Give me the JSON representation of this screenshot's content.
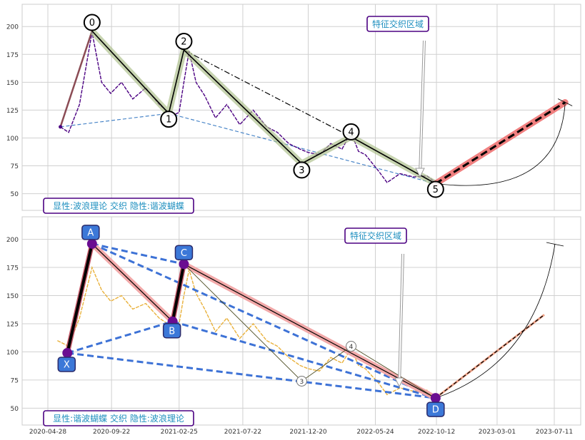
{
  "chart_data": [
    {
      "type": "line",
      "panel": "top",
      "ylim": [
        35,
        220
      ],
      "yticks": [
        50,
        75,
        100,
        125,
        150,
        175,
        200
      ],
      "xgrid_dates": [
        "2020-04-28",
        "2020-09-22",
        "2021-02-25",
        "2021-07-22",
        "2021-12-20",
        "2022-05-24",
        "2022-10-12",
        "2023-03-01",
        "2023-07-11"
      ],
      "grid": true,
      "series": [
        {
          "role": "price",
          "color": "#4b0082",
          "x": [
            "2020-05-27",
            "2020-06-15",
            "2020-07-10",
            "2020-08-08",
            "2020-08-30",
            "2020-09-20",
            "2020-10-15",
            "2020-11-10",
            "2020-12-10",
            "2021-01-10",
            "2021-02-10",
            "2021-02-25",
            "2021-03-08",
            "2021-03-20",
            "2021-04-05",
            "2021-04-25",
            "2021-05-20",
            "2021-06-15",
            "2021-07-15",
            "2021-08-15",
            "2021-09-15",
            "2021-10-10",
            "2021-11-05",
            "2021-12-01",
            "2021-12-20",
            "2022-01-15",
            "2022-02-10",
            "2022-03-08",
            "2022-03-29",
            "2022-04-15",
            "2022-05-01",
            "2022-06-01",
            "2022-06-20",
            "2022-07-20",
            "2022-08-20",
            "2022-09-20",
            "2022-10-10"
          ],
          "values": [
            110,
            105,
            130,
            195,
            150,
            140,
            150,
            135,
            145,
            130,
            120,
            123,
            150,
            178,
            150,
            138,
            118,
            130,
            112,
            125,
            110,
            105,
            95,
            90,
            87,
            85,
            95,
            90,
            105,
            88,
            85,
            70,
            60,
            68,
            65,
            66,
            60
          ]
        },
        {
          "role": "wave-path",
          "color": "#000000",
          "x": [
            "2020-08-08",
            "2021-02-01",
            "2021-03-08",
            "2021-12-05",
            "2022-03-29",
            "2022-10-10"
          ],
          "values": [
            196,
            122,
            179,
            77,
            101,
            59
          ]
        },
        {
          "role": "projection",
          "color": "#000000",
          "x": [
            "2022-10-10",
            "2023-08-05"
          ],
          "values": [
            59,
            132
          ]
        }
      ],
      "points": [
        {
          "label": "0",
          "x": "2020-08-08",
          "value": 196
        },
        {
          "label": "1",
          "x": "2021-02-01",
          "value": 122
        },
        {
          "label": "2",
          "x": "2021-03-08",
          "value": 179
        },
        {
          "label": "3",
          "x": "2021-12-05",
          "value": 77
        },
        {
          "label": "4",
          "x": "2022-03-29",
          "value": 101
        },
        {
          "label": "5",
          "x": "2022-10-10",
          "value": 59
        }
      ],
      "annotations": {
        "zone_label": "特征交织区域",
        "legend_box": "显性:波浪理论 交织 隐性:谐波蝴蝶"
      }
    },
    {
      "type": "line",
      "panel": "bottom",
      "ylim": [
        35,
        220
      ],
      "yticks": [
        50,
        75,
        100,
        125,
        150,
        175,
        200
      ],
      "xticks": [
        "2020-04-28",
        "2020-09-22",
        "2021-02-25",
        "2021-07-22",
        "2021-12-20",
        "2022-05-24",
        "2022-10-12",
        "2023-03-01",
        "2023-07-11"
      ],
      "grid": true,
      "series": [
        {
          "role": "price",
          "color": "#e9b13b",
          "x": [
            "2020-05-20",
            "2020-06-15",
            "2020-07-10",
            "2020-08-08",
            "2020-08-30",
            "2020-09-20",
            "2020-10-15",
            "2020-11-10",
            "2020-12-10",
            "2021-01-10",
            "2021-02-10",
            "2021-02-25",
            "2021-03-08",
            "2021-03-20",
            "2021-04-05",
            "2021-04-25",
            "2021-05-20",
            "2021-06-15",
            "2021-07-15",
            "2021-08-15",
            "2021-09-15",
            "2021-10-10",
            "2021-11-05",
            "2021-12-01",
            "2021-12-20",
            "2022-01-15",
            "2022-02-10",
            "2022-03-08",
            "2022-03-29",
            "2022-04-15",
            "2022-05-01",
            "2022-06-01",
            "2022-06-20",
            "2022-07-20",
            "2022-08-20",
            "2022-09-20",
            "2022-10-10"
          ],
          "values": [
            110,
            105,
            130,
            175,
            155,
            145,
            150,
            138,
            143,
            130,
            122,
            125,
            150,
            173,
            152,
            138,
            118,
            130,
            112,
            125,
            110,
            105,
            95,
            88,
            85,
            83,
            95,
            90,
            103,
            88,
            85,
            72,
            62,
            68,
            65,
            66,
            60
          ]
        },
        {
          "role": "pattern-path",
          "color": "#000000",
          "x": [
            "2020-06-12",
            "2020-08-08",
            "2021-02-10",
            "2021-03-08",
            "2022-10-10"
          ],
          "values": [
            99,
            196,
            127,
            178,
            59
          ]
        },
        {
          "role": "projection",
          "color": "#d4544c",
          "x": [
            "2022-10-10",
            "2023-06-18"
          ],
          "values": [
            59,
            133
          ]
        }
      ],
      "points": [
        {
          "label": "X",
          "x": "2020-06-12",
          "value": 99
        },
        {
          "label": "A",
          "x": "2020-08-08",
          "value": 196
        },
        {
          "label": "B",
          "x": "2021-02-10",
          "value": 127
        },
        {
          "label": "C",
          "x": "2021-03-08",
          "value": 178
        },
        {
          "label": "D",
          "x": "2022-10-10",
          "value": 59
        }
      ],
      "minor_points": [
        {
          "label": "3",
          "x": "2021-12-05",
          "value": 74
        },
        {
          "label": "4",
          "x": "2022-03-29",
          "value": 105
        }
      ],
      "annotations": {
        "zone_label": "特征交织区域",
        "legend_box": "显性:谐波蝴蝶 交织 隐性:波浪理论"
      }
    }
  ]
}
